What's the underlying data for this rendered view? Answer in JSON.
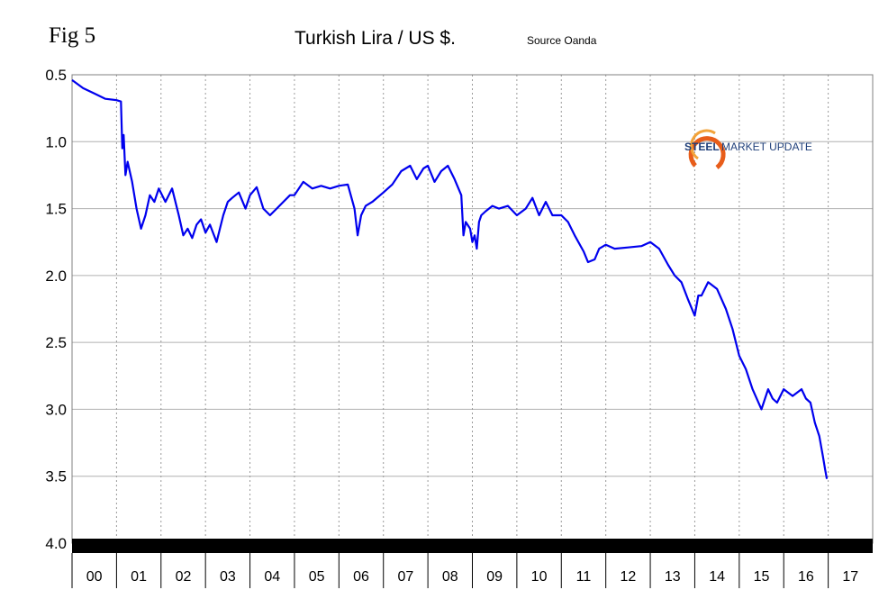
{
  "figure_label": "Fig 5",
  "chart_data": {
    "type": "line",
    "title": "Turkish Lira / US $.",
    "subtitle": "Source Oanda",
    "xlabel": "",
    "ylabel": "",
    "y_inverted": true,
    "ylim": [
      0.5,
      4.0
    ],
    "yticks": [
      "0.5",
      "1.0",
      "1.5",
      "2.0",
      "2.5",
      "3.0",
      "3.5",
      "4.0"
    ],
    "xlim": [
      2000,
      2018
    ],
    "categories": [
      "00",
      "01",
      "02",
      "03",
      "04",
      "05",
      "06",
      "07",
      "08",
      "09",
      "10",
      "11",
      "12",
      "13",
      "14",
      "15",
      "16",
      "17"
    ],
    "grid": true,
    "series_color": "#0000ee",
    "series": [
      {
        "x": [
          2000.0,
          2000.25,
          2000.5,
          2000.75,
          2001.0,
          2001.1,
          2001.13,
          2001.16,
          2001.2,
          2001.25,
          2001.35,
          2001.45,
          2001.55,
          2001.65,
          2001.75,
          2001.85,
          2001.95,
          2002.1,
          2002.25,
          2002.4,
          2002.5,
          2002.6,
          2002.7,
          2002.8,
          2002.9,
          2003.0,
          2003.1,
          2003.25,
          2003.4,
          2003.5,
          2003.6,
          2003.75,
          2003.9,
          2004.0,
          2004.15,
          2004.3,
          2004.45,
          2004.6,
          2004.75,
          2004.9,
          2005.0,
          2005.2,
          2005.4,
          2005.6,
          2005.8,
          2006.0,
          2006.2,
          2006.35,
          2006.42,
          2006.5,
          2006.6,
          2006.75,
          2007.0,
          2007.2,
          2007.4,
          2007.6,
          2007.75,
          2007.9,
          2008.0,
          2008.15,
          2008.3,
          2008.45,
          2008.6,
          2008.75,
          2008.8,
          2008.85,
          2008.95,
          2009.0,
          2009.05,
          2009.1,
          2009.15,
          2009.2,
          2009.3,
          2009.45,
          2009.6,
          2009.8,
          2010.0,
          2010.2,
          2010.35,
          2010.5,
          2010.65,
          2010.8,
          2011.0,
          2011.15,
          2011.3,
          2011.5,
          2011.6,
          2011.75,
          2011.85,
          2012.0,
          2012.2,
          2012.5,
          2012.8,
          2013.0,
          2013.2,
          2013.4,
          2013.55,
          2013.7,
          2013.85,
          2014.0,
          2014.08,
          2014.15,
          2014.3,
          2014.5,
          2014.7,
          2014.85,
          2015.0,
          2015.15,
          2015.3,
          2015.5,
          2015.65,
          2015.75,
          2015.85,
          2016.0,
          2016.2,
          2016.4,
          2016.5,
          2016.6,
          2016.7,
          2016.8,
          2016.88,
          2016.93,
          2016.97
        ],
        "y": [
          0.54,
          0.6,
          0.64,
          0.68,
          0.69,
          0.7,
          1.05,
          0.95,
          1.25,
          1.15,
          1.3,
          1.5,
          1.65,
          1.55,
          1.4,
          1.45,
          1.35,
          1.45,
          1.35,
          1.55,
          1.7,
          1.65,
          1.72,
          1.62,
          1.58,
          1.68,
          1.62,
          1.75,
          1.55,
          1.45,
          1.42,
          1.38,
          1.5,
          1.4,
          1.34,
          1.5,
          1.55,
          1.5,
          1.45,
          1.4,
          1.4,
          1.3,
          1.35,
          1.33,
          1.35,
          1.33,
          1.32,
          1.5,
          1.7,
          1.55,
          1.48,
          1.45,
          1.38,
          1.32,
          1.22,
          1.18,
          1.28,
          1.2,
          1.18,
          1.3,
          1.22,
          1.18,
          1.28,
          1.4,
          1.7,
          1.6,
          1.65,
          1.75,
          1.7,
          1.8,
          1.6,
          1.55,
          1.52,
          1.48,
          1.5,
          1.48,
          1.55,
          1.5,
          1.42,
          1.55,
          1.45,
          1.55,
          1.55,
          1.6,
          1.7,
          1.82,
          1.9,
          1.88,
          1.8,
          1.77,
          1.8,
          1.79,
          1.78,
          1.75,
          1.8,
          1.92,
          2.0,
          2.05,
          2.18,
          2.3,
          2.15,
          2.15,
          2.05,
          2.1,
          2.25,
          2.4,
          2.6,
          2.7,
          2.85,
          3.0,
          2.85,
          2.92,
          2.95,
          2.85,
          2.9,
          2.85,
          2.92,
          2.95,
          3.1,
          3.2,
          3.35,
          3.45,
          3.52
        ]
      }
    ],
    "logo_text": [
      "STEEL",
      "MARKET UPDATE"
    ]
  }
}
